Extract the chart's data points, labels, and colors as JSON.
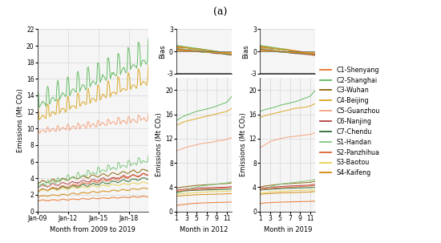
{
  "title": "(a)",
  "legend_entries": [
    {
      "label": "C1-Shenyang",
      "color": "#E8732A"
    },
    {
      "label": "C2-Shanghai",
      "color": "#5CB85C"
    },
    {
      "label": "C3-Wuhan",
      "color": "#8B6508"
    },
    {
      "label": "C4-Beijing",
      "color": "#DAA520"
    },
    {
      "label": "C5-Guanzhou",
      "color": "#F5A07A"
    },
    {
      "label": "C6-Nanjing",
      "color": "#B84040"
    },
    {
      "label": "C7-Chendu",
      "color": "#2E6B2E"
    },
    {
      "label": "S1-Handan",
      "color": "#7DC67D"
    },
    {
      "label": "S2-Panzhihua",
      "color": "#E06030"
    },
    {
      "label": "S3-Baotou",
      "color": "#E8D050"
    },
    {
      "label": "S4-Kaifeng",
      "color": "#D4860A"
    }
  ],
  "p1_yticks": [
    0,
    2,
    4,
    6,
    8,
    10,
    12,
    14,
    16,
    18,
    20,
    22
  ],
  "p1_xlabel": "Month from 2009 to 2019",
  "p1_ylabel": "Emissions (Mt CO₂)",
  "p1_xtick_labels": [
    "Jan-09",
    "Jan-12",
    "Jan-15",
    "Jan-18"
  ],
  "p2b_yticks": [
    0,
    4,
    8,
    12,
    16,
    20
  ],
  "p2b_xticks": [
    1,
    3,
    5,
    7,
    9,
    11
  ],
  "p2b_xlabel": "Month in 2012",
  "p2b_ylabel": "Emissions (Mt CO₂)",
  "p2t_ylabel": "Bias",
  "p2t_yticks": [
    -3,
    0,
    3
  ],
  "p3b_xlabel": "Month in 2019",
  "p3b_ylabel": "Emissions (Mt CO₂)",
  "p3t_ylabel": "Bias",
  "p3t_yticks": [
    -3,
    0,
    3
  ],
  "bias_ylim": [
    -3,
    3
  ],
  "emit_ylim": [
    0,
    22
  ]
}
